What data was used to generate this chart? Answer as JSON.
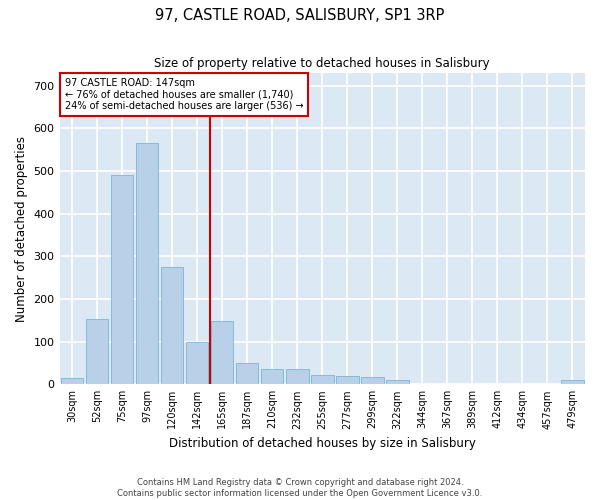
{
  "title": "97, CASTLE ROAD, SALISBURY, SP1 3RP",
  "subtitle": "Size of property relative to detached houses in Salisbury",
  "xlabel": "Distribution of detached houses by size in Salisbury",
  "ylabel": "Number of detached properties",
  "footer1": "Contains HM Land Registry data © Crown copyright and database right 2024.",
  "footer2": "Contains public sector information licensed under the Open Government Licence v3.0.",
  "annotation_line1": "97 CASTLE ROAD: 147sqm",
  "annotation_line2": "← 76% of detached houses are smaller (1,740)",
  "annotation_line3": "24% of semi-detached houses are larger (536) →",
  "bar_color": "#b8d0e8",
  "bar_edge_color": "#6aaed6",
  "background_color": "#dce9f5",
  "grid_color": "#ffffff",
  "red_line_color": "#cc0000",
  "categories": [
    "30sqm",
    "52sqm",
    "75sqm",
    "97sqm",
    "120sqm",
    "142sqm",
    "165sqm",
    "187sqm",
    "210sqm",
    "232sqm",
    "255sqm",
    "277sqm",
    "299sqm",
    "322sqm",
    "344sqm",
    "367sqm",
    "389sqm",
    "412sqm",
    "434sqm",
    "457sqm",
    "479sqm"
  ],
  "values": [
    15,
    152,
    490,
    565,
    275,
    100,
    148,
    50,
    35,
    35,
    22,
    20,
    16,
    10,
    0,
    0,
    0,
    0,
    0,
    0,
    10
  ],
  "ylim": [
    0,
    730
  ],
  "yticks": [
    0,
    100,
    200,
    300,
    400,
    500,
    600,
    700
  ],
  "red_line_x": 5.5,
  "figsize": [
    6.0,
    5.0
  ],
  "dpi": 100
}
